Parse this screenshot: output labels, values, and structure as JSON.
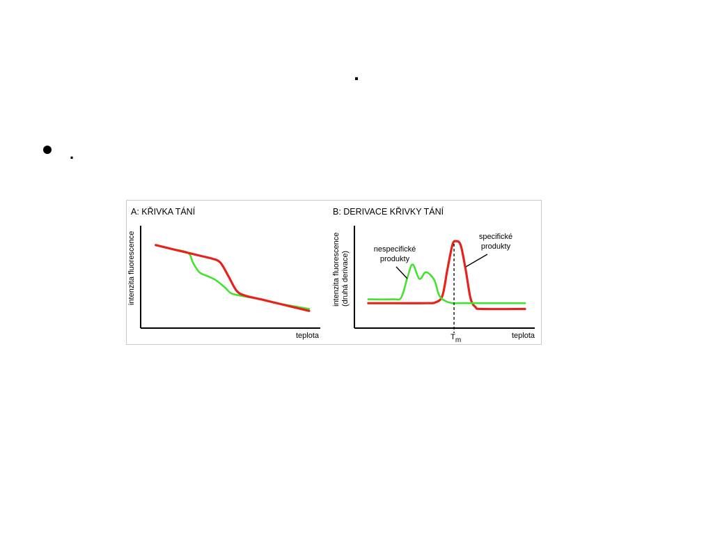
{
  "slide": {
    "title": ".",
    "bullet_text": "."
  },
  "chart_data": [
    {
      "type": "line",
      "title": "A:  KŘIVKA TÁNÍ",
      "xlabel": "teplota",
      "ylabel": "intenzita fluorescence",
      "axis_ticks": "none",
      "x_domain": [
        0,
        100
      ],
      "y_domain": [
        0,
        100
      ],
      "series": [
        {
          "color": "#e8211b",
          "x": [
            5,
            15,
            25,
            35,
            40,
            45,
            50,
            55,
            60,
            70,
            80,
            90,
            100
          ],
          "y": [
            80,
            76,
            72,
            68,
            66,
            62,
            48,
            33,
            28,
            24,
            20,
            16,
            12
          ]
        },
        {
          "color": "#41e32c",
          "x": [
            5,
            15,
            25,
            28,
            32,
            37,
            42,
            48,
            52,
            60,
            70,
            80,
            90,
            100
          ],
          "y": [
            80,
            76,
            72,
            62,
            52,
            48,
            44,
            36,
            30,
            27,
            24,
            20,
            17,
            14
          ]
        }
      ]
    },
    {
      "type": "line",
      "title": "B:  DERIVACE KŘIVKY TÁNÍ",
      "xlabel": "teplota",
      "ylabel": "intenzita fluorescence\n(druhá derivace)",
      "axis_ticks": "none",
      "x_domain": [
        0,
        100
      ],
      "y_domain": [
        0,
        100
      ],
      "vline": {
        "x": 57,
        "label": "T",
        "label_sub": "m",
        "style": "dashed"
      },
      "annotations": [
        {
          "text": [
            "nespecifické",
            "produkty"
          ],
          "points_to": "green-peaks"
        },
        {
          "text": [
            "specifické",
            "produkty"
          ],
          "points_to": "red-peak"
        }
      ],
      "series": [
        {
          "color": "#e8211b",
          "x": [
            5,
            20,
            40,
            46,
            50,
            53,
            56,
            58,
            61,
            64,
            67,
            70,
            74,
            100
          ],
          "y": [
            20,
            20,
            20,
            21,
            28,
            55,
            80,
            84,
            80,
            55,
            25,
            16,
            14,
            14
          ]
        },
        {
          "color": "#41e32c",
          "x": [
            5,
            20,
            25,
            29,
            32,
            36,
            40,
            45,
            48,
            52,
            56,
            60,
            70,
            100
          ],
          "y": [
            24,
            24,
            26,
            48,
            60,
            45,
            52,
            44,
            28,
            22,
            20,
            20,
            20,
            20
          ]
        }
      ]
    }
  ]
}
